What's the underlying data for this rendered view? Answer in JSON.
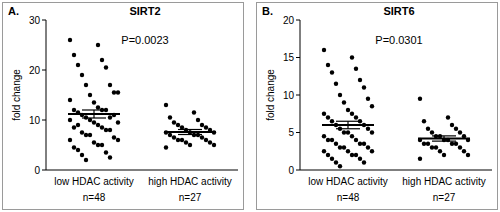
{
  "chart_data": [
    {
      "type": "strip",
      "title": "SIRT2",
      "annotations": [
        "A.",
        "P=0.0023"
      ],
      "ylabel": "fold change",
      "categories": [
        "low HDAC activity",
        "high HDAC activity"
      ],
      "n_labels": [
        "n=48",
        "n=27"
      ],
      "values": [
        [
          26,
          25,
          23,
          22,
          21,
          20.5,
          19,
          17,
          17,
          15.5,
          15,
          15.5,
          13.5,
          14,
          12.5,
          12,
          12,
          11.5,
          12,
          11,
          10.5,
          10.5,
          11,
          10,
          9.5,
          9.5,
          10,
          9,
          8.5,
          8.5,
          9,
          8,
          7.5,
          8,
          7,
          6.5,
          7,
          6,
          5.5,
          6,
          5,
          4.5,
          5,
          4,
          3.5,
          3,
          2.5,
          2
        ],
        [
          13,
          11.5,
          10.5,
          10,
          9.5,
          9,
          9,
          8.5,
          8.5,
          8,
          8,
          7.5,
          7.5,
          7.5,
          7,
          7,
          7,
          6.5,
          6.5,
          6,
          6,
          6,
          5.5,
          5.5,
          5,
          5,
          4.5
        ]
      ],
      "means": [
        11.2,
        7.6
      ],
      "sem": [
        0.8,
        0.5
      ],
      "color": "#000000",
      "grid": false,
      "ylim": [
        0,
        30
      ],
      "yticks": [
        0,
        10,
        20,
        30
      ]
    },
    {
      "type": "strip",
      "title": "SIRT6",
      "annotations": [
        "B.",
        "P=0.0301"
      ],
      "ylabel": "fold change",
      "categories": [
        "low HDAC activity",
        "high HDAC activity"
      ],
      "n_labels": [
        "n=48",
        "n=27"
      ],
      "values": [
        [
          16,
          15,
          14,
          13.5,
          13,
          12,
          11.5,
          11,
          10,
          9.5,
          9,
          8.5,
          8,
          7.5,
          7.5,
          7,
          7,
          6.5,
          6.5,
          6,
          6,
          5.5,
          5.5,
          5,
          5,
          5,
          4.5,
          4.5,
          4,
          4,
          4,
          3.5,
          3.5,
          3.5,
          3,
          3,
          3,
          2.5,
          2.5,
          2.5,
          2,
          2,
          2,
          1.5,
          1.5,
          1,
          1,
          0.5
        ],
        [
          9.5,
          7,
          6.5,
          6,
          5.5,
          5.5,
          5,
          5,
          4.5,
          4.5,
          4.5,
          4,
          4,
          4,
          4,
          3.5,
          3.5,
          3.5,
          3.5,
          3,
          3,
          3,
          2.5,
          2.5,
          2,
          2,
          1.5
        ]
      ],
      "means": [
        6.0,
        4.2
      ],
      "sem": [
        0.5,
        0.35
      ],
      "color": "#000000",
      "grid": false,
      "ylim": [
        0,
        20
      ],
      "yticks": [
        0,
        5,
        10,
        15,
        20
      ]
    }
  ]
}
